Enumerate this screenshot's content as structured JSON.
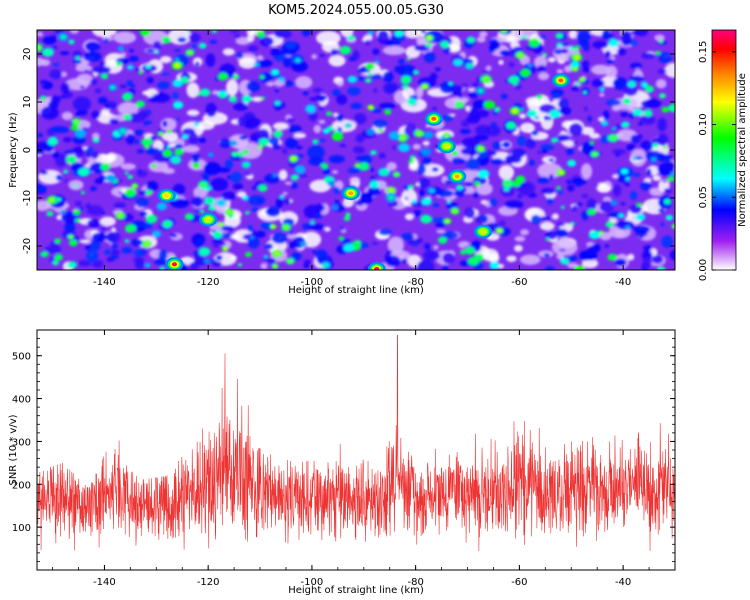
{
  "figure": {
    "title": "KOM5.2024.055.00.05.G30"
  },
  "chart_data": [
    {
      "type": "heatmap",
      "title": "KOM5.2024.055.00.05.G30",
      "xlabel": "Height of straight line (km)",
      "ylabel": "Frequency (Hz)",
      "xlim": [
        -153,
        -30
      ],
      "ylim": [
        -25,
        25
      ],
      "x_ticks": [
        -140,
        -120,
        -100,
        -80,
        -60,
        -40
      ],
      "x_tick_labels": [
        "-140",
        "-120",
        "-100",
        "-80",
        "-60",
        "-40"
      ],
      "y_ticks": [
        -20,
        -10,
        0,
        10,
        20
      ],
      "y_tick_labels": [
        "-20",
        "-10",
        "0",
        "10",
        "20"
      ],
      "colorbar": {
        "label": "Normalized spectral amplitude",
        "range": [
          0.0,
          0.165
        ],
        "ticks": [
          0.0,
          0.05,
          0.1,
          0.15
        ],
        "tick_labels": [
          "0.00",
          "0.05",
          "0.10",
          "0.15"
        ],
        "colors": [
          "#ffffff",
          "#a020f0",
          "#0000ff",
          "#00ffff",
          "#00ff00",
          "#ffff00",
          "#ff8000",
          "#ff0000",
          "#ff0080"
        ]
      },
      "notable_peaks": [
        {
          "x": -126.5,
          "y": -23.8,
          "value": 0.16
        },
        {
          "x": -87.5,
          "y": -24.8,
          "value": 0.16
        },
        {
          "x": -76.5,
          "y": 6.5,
          "value": 0.14
        },
        {
          "x": -74,
          "y": 0.8,
          "value": 0.11
        },
        {
          "x": -72,
          "y": -5.5,
          "value": 0.13
        },
        {
          "x": -52,
          "y": 14.5,
          "value": 0.14
        },
        {
          "x": -92.5,
          "y": -9,
          "value": 0.13
        },
        {
          "x": -128,
          "y": -9.5,
          "value": 0.12
        },
        {
          "x": -120,
          "y": -14.5,
          "value": 0.11
        },
        {
          "x": -67,
          "y": -17,
          "value": 0.11
        }
      ],
      "grid": false
    },
    {
      "type": "line",
      "xlabel": "Height of straight line (km)",
      "ylabel": "SNR (10 * v/v)",
      "xlim": [
        -153,
        -30
      ],
      "ylim": [
        0,
        560
      ],
      "x_ticks": [
        -140,
        -120,
        -100,
        -80,
        -60,
        -40
      ],
      "x_tick_labels": [
        "-140",
        "-120",
        "-100",
        "-80",
        "-60",
        "-40"
      ],
      "y_ticks": [
        100,
        200,
        300,
        400,
        500
      ],
      "y_tick_labels": [
        "100",
        "200",
        "300",
        "400",
        "500"
      ],
      "color": "#ff0000",
      "series": [
        {
          "x": [
            -153,
            -148,
            -143,
            -138,
            -133,
            -128,
            -123,
            -118,
            -113,
            -108,
            -103,
            -98,
            -93,
            -88,
            -84,
            -83.5,
            -83,
            -79,
            -74,
            -69,
            -64,
            -59,
            -54,
            -49,
            -44,
            -39,
            -34,
            -32,
            -30
          ],
          "values": [
            210,
            230,
            170,
            300,
            190,
            200,
            290,
            510,
            450,
            250,
            230,
            240,
            290,
            220,
            350,
            560,
            330,
            260,
            270,
            300,
            280,
            360,
            280,
            340,
            260,
            330,
            300,
            400,
            230
          ]
        }
      ],
      "grid": false
    }
  ]
}
